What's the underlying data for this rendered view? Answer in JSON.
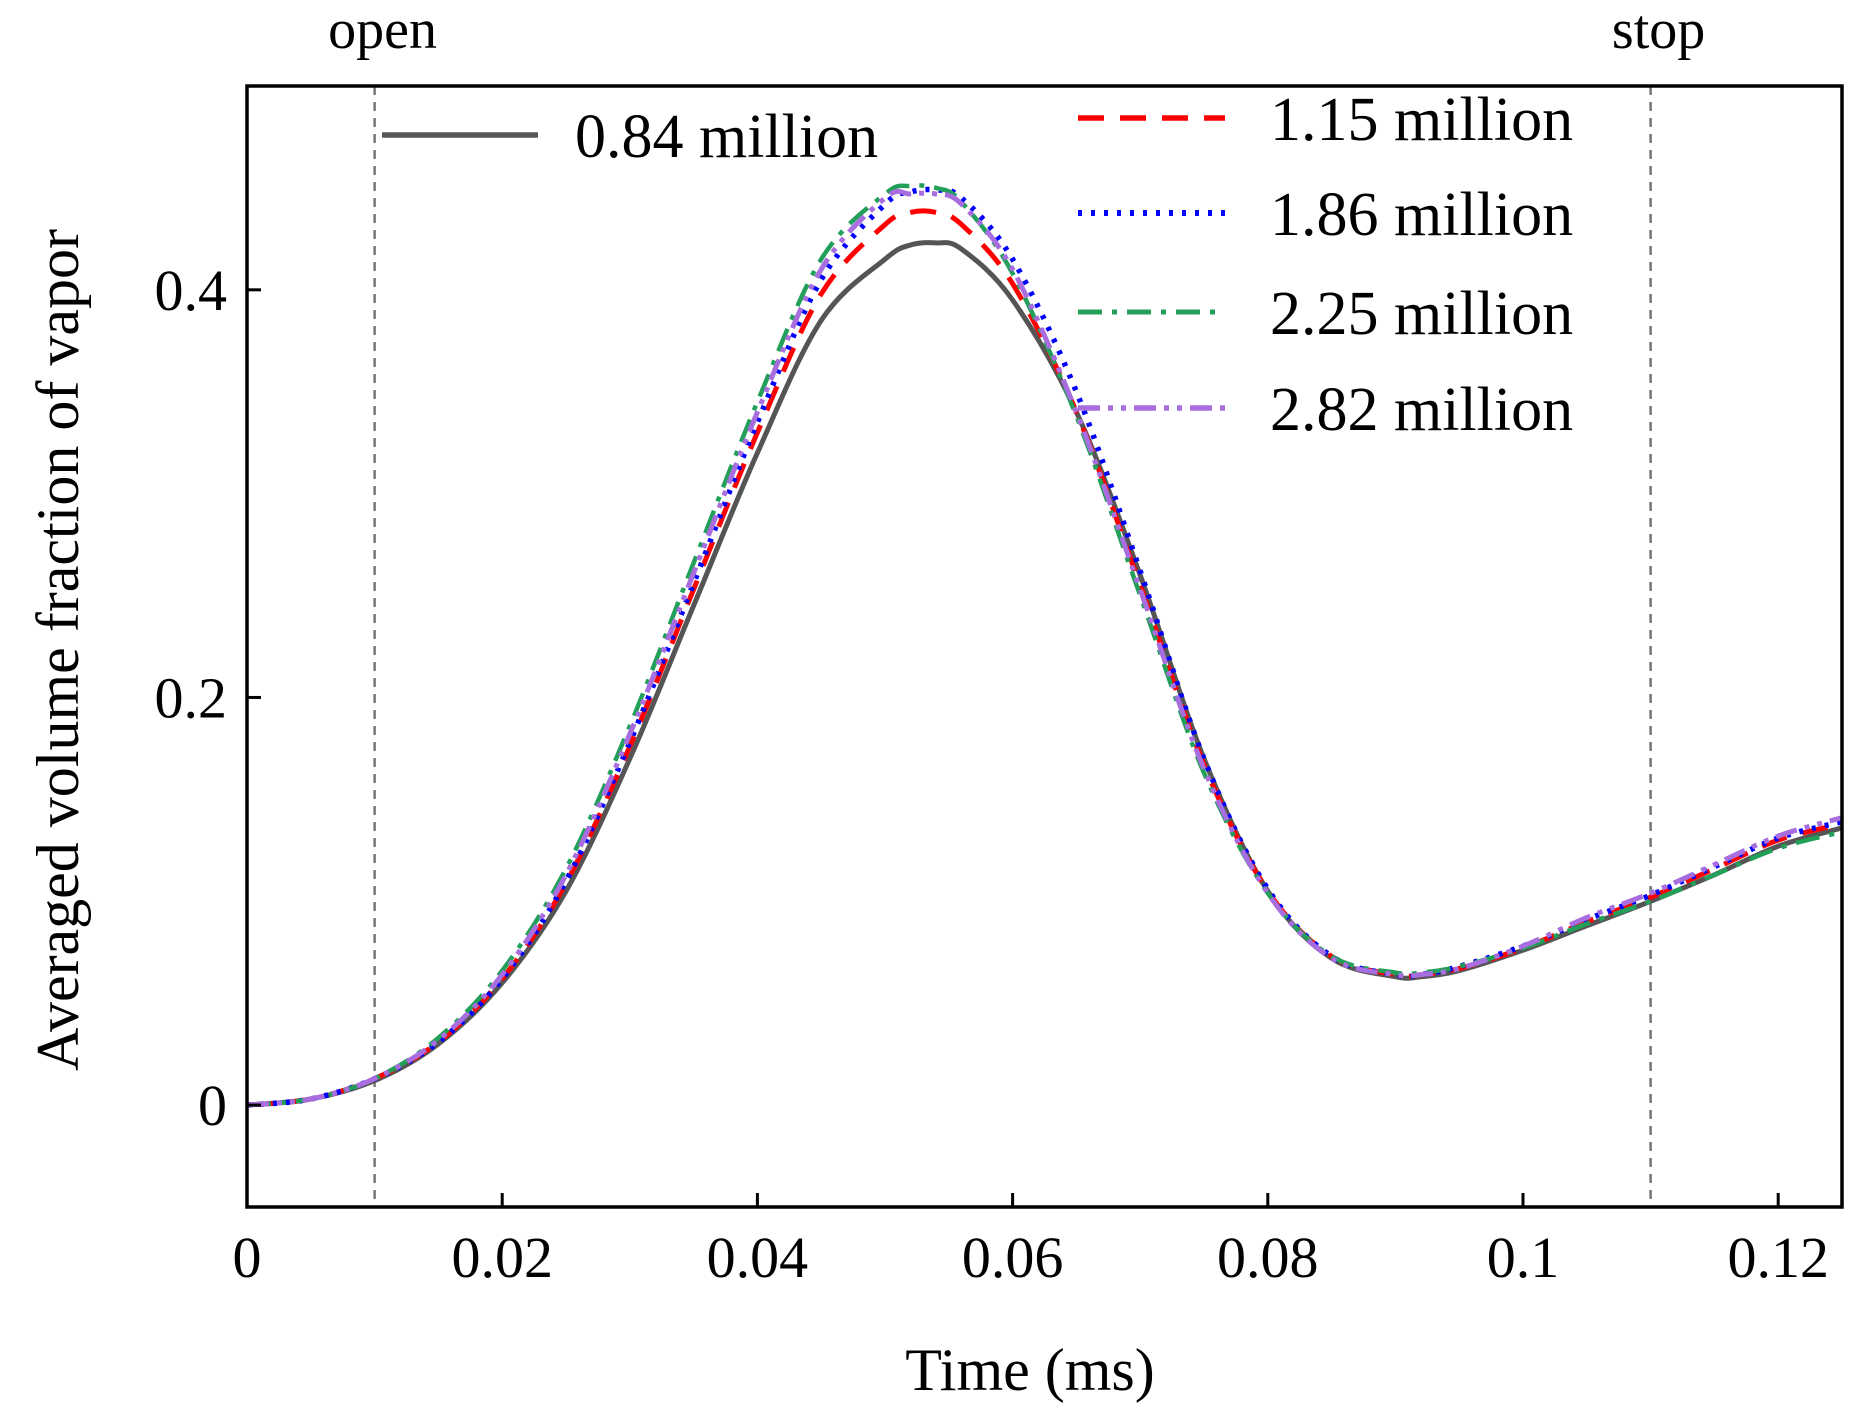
{
  "chart_data": {
    "type": "line",
    "title": "",
    "xlabel": "Time (ms)",
    "ylabel": "Averaged volume fraction of vapor",
    "xlim": [
      0,
      0.125
    ],
    "ylim": [
      -0.05,
      0.5
    ],
    "xticks": [
      0,
      0.02,
      0.04,
      0.06,
      0.08,
      0.1,
      0.12
    ],
    "xtick_labels": [
      "0",
      "0.02",
      "0.04",
      "0.06",
      "0.08",
      "0.1",
      "0.12"
    ],
    "yticks": [
      0,
      0.2,
      0.4
    ],
    "ytick_labels": [
      "0",
      "0.2",
      "0.4"
    ],
    "grid": false,
    "legend_position": "top",
    "annotations": [
      {
        "label": "open",
        "x": 0.01
      },
      {
        "label": "stop",
        "x": 0.11
      }
    ],
    "x": [
      0,
      0.005,
      0.01,
      0.015,
      0.02,
      0.025,
      0.03,
      0.035,
      0.04,
      0.045,
      0.05,
      0.052,
      0.054,
      0.056,
      0.06,
      0.065,
      0.07,
      0.075,
      0.08,
      0.085,
      0.09,
      0.092,
      0.095,
      0.1,
      0.105,
      0.11,
      0.115,
      0.12,
      0.125
    ],
    "series": [
      {
        "name": "0.84 million",
        "color": "#555555",
        "dash": "solid",
        "values": [
          0,
          0.003,
          0.012,
          0.03,
          0.06,
          0.105,
          0.17,
          0.245,
          0.32,
          0.385,
          0.415,
          0.422,
          0.423,
          0.42,
          0.395,
          0.34,
          0.26,
          0.17,
          0.105,
          0.072,
          0.063,
          0.063,
          0.066,
          0.076,
          0.088,
          0.1,
          0.113,
          0.127,
          0.136
        ]
      },
      {
        "name": "1.15 million",
        "color": "#ff0000",
        "dash": "dashed",
        "values": [
          0,
          0.003,
          0.013,
          0.031,
          0.062,
          0.109,
          0.176,
          0.253,
          0.33,
          0.398,
          0.432,
          0.438,
          0.438,
          0.432,
          0.403,
          0.34,
          0.255,
          0.167,
          0.105,
          0.073,
          0.064,
          0.064,
          0.067,
          0.077,
          0.09,
          0.102,
          0.116,
          0.13,
          0.138
        ]
      },
      {
        "name": "1.86 million",
        "color": "#0000ff",
        "dash": "dotted",
        "values": [
          0,
          0.003,
          0.013,
          0.031,
          0.062,
          0.11,
          0.178,
          0.256,
          0.335,
          0.405,
          0.442,
          0.448,
          0.449,
          0.445,
          0.415,
          0.35,
          0.262,
          0.17,
          0.106,
          0.073,
          0.064,
          0.064,
          0.068,
          0.078,
          0.091,
          0.103,
          0.117,
          0.131,
          0.139
        ]
      },
      {
        "name": "2.25 million",
        "color": "#22a05a",
        "dash": "dashdot",
        "values": [
          0,
          0.003,
          0.013,
          0.033,
          0.066,
          0.116,
          0.186,
          0.266,
          0.345,
          0.415,
          0.447,
          0.451,
          0.45,
          0.443,
          0.408,
          0.338,
          0.25,
          0.163,
          0.104,
          0.073,
          0.065,
          0.065,
          0.068,
          0.077,
          0.089,
          0.1,
          0.113,
          0.126,
          0.134
        ]
      },
      {
        "name": "2.82 million",
        "color": "#a86ee0",
        "dash": "dashdotdot",
        "values": [
          0,
          0.003,
          0.013,
          0.032,
          0.064,
          0.113,
          0.182,
          0.261,
          0.34,
          0.41,
          0.445,
          0.447,
          0.447,
          0.442,
          0.41,
          0.34,
          0.253,
          0.165,
          0.104,
          0.072,
          0.064,
          0.064,
          0.067,
          0.078,
          0.092,
          0.104,
          0.118,
          0.132,
          0.141
        ]
      }
    ]
  },
  "icons": {
    "series_legend_swatches": [
      "solid-line-icon",
      "dashed-line-icon",
      "dotted-line-icon",
      "dashdot-line-icon",
      "dashdotdot-line-icon"
    ]
  }
}
